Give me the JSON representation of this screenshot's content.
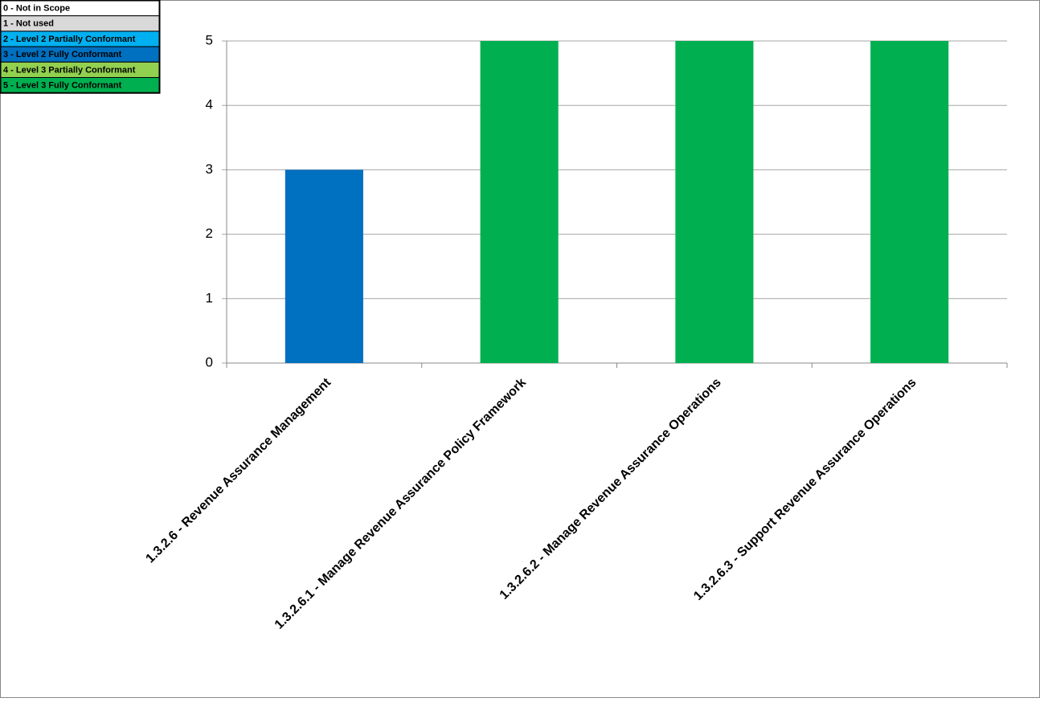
{
  "chart_data": {
    "type": "bar",
    "categories": [
      "1.3.2.6 - Revenue Assurance Management",
      "1.3.2.6.1 - Manage Revenue Assurance Policy Framework",
      "1.3.2.6.2 - Manage Revenue Assurance Operations",
      "1.3.2.6.3 - Support Revenue Assurance Operations"
    ],
    "values": [
      3,
      5,
      5,
      5
    ],
    "colors": [
      "#0070c0",
      "#00b050",
      "#00b050",
      "#00b050"
    ],
    "ylim": [
      0,
      5
    ],
    "yticks": [
      0,
      1,
      2,
      3,
      4,
      5
    ],
    "grid": true,
    "legend": [
      {
        "name": "0 - Not in Scope",
        "color": "#ffffff"
      },
      {
        "name": "1 - Not used",
        "color": "#d9d9d9"
      },
      {
        "name": "2 - Level 2 Partially Conformant",
        "color": "#00b0f0"
      },
      {
        "name": "3 - Level 2 Fully Conformant",
        "color": "#0070c0"
      },
      {
        "name": "4 - Level 3 Partially Conformant",
        "color": "#92d050"
      },
      {
        "name": "5 - Level 3 Fully Conformant",
        "color": "#00b050"
      }
    ]
  }
}
